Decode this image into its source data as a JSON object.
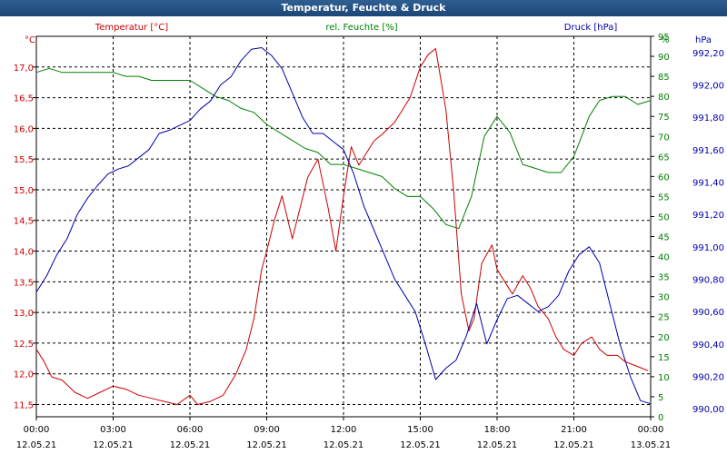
{
  "window": {
    "title": "Temperatur, Feuchte & Druck"
  },
  "chart_data": {
    "type": "line",
    "title": "Temperatur, Feuchte & Druck",
    "x_ticks": [
      {
        "hour": 0,
        "time": "00:00",
        "date": "12.05.21"
      },
      {
        "hour": 3,
        "time": "03:00",
        "date": "12.05.21"
      },
      {
        "hour": 6,
        "time": "06:00",
        "date": "12.05.21"
      },
      {
        "hour": 9,
        "time": "09:00",
        "date": "12.05.21"
      },
      {
        "hour": 12,
        "time": "12:00",
        "date": "12.05.21"
      },
      {
        "hour": 15,
        "time": "15:00",
        "date": "12.05.21"
      },
      {
        "hour": 18,
        "time": "18:00",
        "date": "12.05.21"
      },
      {
        "hour": 21,
        "time": "21:00",
        "date": "12.05.21"
      },
      {
        "hour": 24,
        "time": "00:00",
        "date": "13.05.21"
      }
    ],
    "x_range": [
      0,
      24
    ],
    "axes": {
      "temperature": {
        "unit": "°C",
        "range": [
          11.3,
          17.5
        ],
        "ticks": [
          "11,5",
          "12,0",
          "12,5",
          "13,0",
          "13,5",
          "14,0",
          "14,5",
          "15,0",
          "15,5",
          "16,0",
          "16,5",
          "17,0"
        ],
        "tick_values": [
          11.5,
          12.0,
          12.5,
          13.0,
          13.5,
          14.0,
          14.5,
          15.0,
          15.5,
          16.0,
          16.5,
          17.0
        ],
        "color": "#cc0000"
      },
      "humidity": {
        "unit": "%",
        "range": [
          0,
          95
        ],
        "ticks": [
          "0",
          "5",
          "10",
          "15",
          "20",
          "25",
          "30",
          "35",
          "40",
          "45",
          "50",
          "55",
          "60",
          "65",
          "70",
          "75",
          "80",
          "85",
          "90",
          "95"
        ],
        "tick_values": [
          0,
          5,
          10,
          15,
          20,
          25,
          30,
          35,
          40,
          45,
          50,
          55,
          60,
          65,
          70,
          75,
          80,
          85,
          90,
          95
        ],
        "color": "#008000"
      },
      "pressure": {
        "unit": "hPa",
        "range": [
          989.95,
          992.3
        ],
        "ticks": [
          "990,00",
          "990,20",
          "990,40",
          "990,60",
          "990,80",
          "991,00",
          "991,20",
          "991,40",
          "991,60",
          "991,80",
          "992,00",
          "992,20"
        ],
        "tick_values": [
          990.0,
          990.2,
          990.4,
          990.6,
          990.8,
          991.0,
          991.2,
          991.4,
          991.6,
          991.8,
          992.0,
          992.2
        ],
        "color": "#0000aa"
      }
    },
    "series": [
      {
        "name": "Temperatur [°C]",
        "axis": "temperature",
        "color": "#cc0000",
        "x": [
          0,
          0.3,
          0.6,
          1,
          1.5,
          2,
          2.5,
          3,
          3.5,
          4,
          4.5,
          5,
          5.5,
          6,
          6.3,
          6.8,
          7.3,
          7.8,
          8.2,
          8.5,
          8.8,
          9,
          9.3,
          9.6,
          10,
          10.3,
          10.6,
          11,
          11.4,
          11.7,
          12,
          12.3,
          12.6,
          12.9,
          13.2,
          13.5,
          14,
          14.3,
          14.6,
          15,
          15.3,
          15.6,
          16,
          16.3,
          16.6,
          16.9,
          17.1,
          17.4,
          17.8,
          18,
          18.3,
          18.6,
          19,
          19.3,
          19.6,
          20,
          20.3,
          20.6,
          21,
          21.3,
          21.7,
          22,
          22.3,
          22.7,
          23,
          23.3,
          23.6,
          23.9
        ],
        "values": [
          12.4,
          12.2,
          11.95,
          11.9,
          11.7,
          11.6,
          11.7,
          11.8,
          11.75,
          11.65,
          11.6,
          11.55,
          11.5,
          11.65,
          11.5,
          11.55,
          11.65,
          12.0,
          12.4,
          12.9,
          13.7,
          14.0,
          14.5,
          14.9,
          14.2,
          14.7,
          15.2,
          15.5,
          14.7,
          14.0,
          14.9,
          15.7,
          15.4,
          15.6,
          15.8,
          15.9,
          16.1,
          16.3,
          16.5,
          17.0,
          17.2,
          17.3,
          16.3,
          15.0,
          13.3,
          12.7,
          12.9,
          13.8,
          14.1,
          13.7,
          13.5,
          13.3,
          13.6,
          13.4,
          13.1,
          12.9,
          12.6,
          12.4,
          12.3,
          12.5,
          12.6,
          12.4,
          12.3,
          12.3,
          12.2,
          12.15,
          12.1,
          12.05
        ]
      },
      {
        "name": "rel. Feuchte [%]",
        "axis": "humidity",
        "color": "#008000",
        "x": [
          0,
          0.5,
          1,
          1.5,
          2,
          2.5,
          3,
          3.5,
          4,
          4.5,
          5,
          5.5,
          6,
          6.5,
          7,
          7.5,
          8,
          8.5,
          9,
          9.5,
          10,
          10.5,
          11,
          11.5,
          12,
          12.5,
          13,
          13.5,
          14,
          14.5,
          15,
          15.5,
          16,
          16.5,
          17,
          17.5,
          18,
          18.5,
          19,
          19.5,
          20,
          20.5,
          21,
          21.3,
          21.6,
          22,
          22.5,
          23,
          23.5,
          24
        ],
        "values": [
          86,
          87,
          86,
          86,
          86,
          86,
          86,
          85,
          85,
          84,
          84,
          84,
          84,
          82,
          80,
          79,
          77,
          76,
          73,
          71,
          69,
          67,
          66,
          63,
          63,
          62,
          61,
          60,
          57,
          55,
          55,
          52,
          48,
          47,
          55,
          70,
          75,
          71,
          63,
          62,
          61,
          61,
          65,
          70,
          75,
          79,
          80,
          80,
          78,
          79
        ]
      },
      {
        "name": "Druck [hPa]",
        "axis": "pressure",
        "color": "#0000aa",
        "x": [
          0,
          0.4,
          0.8,
          1.2,
          1.6,
          2,
          2.4,
          2.8,
          3.2,
          3.6,
          4,
          4.4,
          4.8,
          5.2,
          5.6,
          6,
          6.4,
          6.8,
          7.2,
          7.6,
          8,
          8.4,
          8.8,
          9.2,
          9.6,
          10,
          10.4,
          10.8,
          11.2,
          11.6,
          12,
          12.4,
          12.8,
          13.2,
          13.6,
          14,
          14.4,
          14.8,
          15.2,
          15.6,
          16,
          16.4,
          16.8,
          17.2,
          17.6,
          18,
          18.4,
          18.8,
          19.2,
          19.6,
          20,
          20.4,
          20.8,
          21.2,
          21.6,
          22,
          22.4,
          22.8,
          23.2,
          23.6,
          24
        ],
        "values": [
          990.72,
          990.82,
          990.95,
          991.05,
          991.2,
          991.3,
          991.38,
          991.45,
          991.48,
          991.5,
          991.55,
          991.6,
          991.7,
          991.72,
          991.75,
          991.78,
          991.85,
          991.9,
          992.0,
          992.05,
          992.15,
          992.22,
          992.23,
          992.18,
          992.1,
          991.95,
          991.8,
          991.7,
          991.7,
          991.65,
          991.6,
          991.45,
          991.25,
          991.1,
          990.95,
          990.8,
          990.7,
          990.6,
          990.4,
          990.18,
          990.25,
          990.3,
          990.45,
          990.65,
          990.4,
          990.55,
          990.68,
          990.7,
          990.65,
          990.6,
          990.63,
          990.7,
          990.85,
          990.95,
          991.0,
          990.9,
          990.65,
          990.4,
          990.2,
          990.05,
          990.03
        ]
      }
    ],
    "legend": {
      "temperature": "Temperatur [°C]",
      "humidity": "rel. Feuchte [%]",
      "pressure": "Druck [hPa]"
    },
    "grid": true
  }
}
